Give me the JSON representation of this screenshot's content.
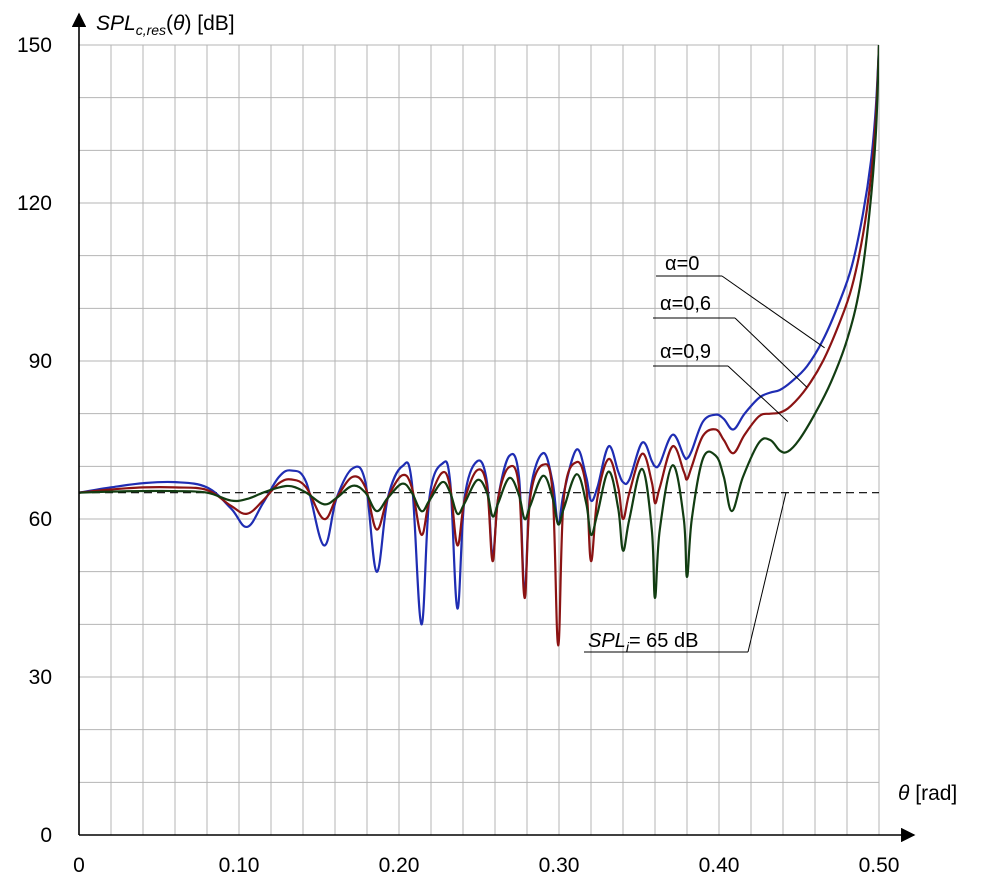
{
  "chart_data": {
    "type": "line",
    "ylabel": {
      "main": "SPL",
      "sub": "c,res",
      "arg_open": "(",
      "arg": "θ",
      "arg_close": ")",
      "unit": " [dB]"
    },
    "xlabel": {
      "symbol": "θ",
      "unit": " [rad]"
    },
    "xlim": [
      0,
      0.5
    ],
    "ylim": [
      0,
      150
    ],
    "x_ticks": [
      0,
      0.1,
      0.2,
      0.3,
      0.4,
      0.5
    ],
    "x_tick_labels": [
      "0",
      "0.10",
      "0.20",
      "0.30",
      "0.40",
      "0.50"
    ],
    "y_ticks": [
      0,
      30,
      60,
      90,
      120,
      150
    ],
    "y_tick_labels": [
      "0",
      "30",
      "60",
      "90",
      "120",
      "150"
    ],
    "x_grid_step": 0.02,
    "y_grid_step": 10,
    "grid": true,
    "reference_line": {
      "y": 65,
      "style": "dashed",
      "label_main": "SPL",
      "label_sub": "i",
      "label_rest": "= 65 dB"
    },
    "series": [
      {
        "name": "α=0",
        "color": "#1f2db3",
        "points": [
          [
            0,
            65
          ],
          [
            0.02,
            66
          ],
          [
            0.04,
            66.8
          ],
          [
            0.06,
            67
          ],
          [
            0.08,
            66
          ],
          [
            0.095,
            62
          ],
          [
            0.105,
            58.5
          ],
          [
            0.115,
            63
          ],
          [
            0.125,
            68
          ],
          [
            0.133,
            69.2
          ],
          [
            0.142,
            67
          ],
          [
            0.153,
            55
          ],
          [
            0.161,
            64
          ],
          [
            0.171,
            69.6
          ],
          [
            0.179,
            67
          ],
          [
            0.186,
            50
          ],
          [
            0.193,
            64
          ],
          [
            0.202,
            70
          ],
          [
            0.208,
            67
          ],
          [
            0.214,
            40
          ],
          [
            0.219,
            64
          ],
          [
            0.227,
            70.5
          ],
          [
            0.232,
            67
          ],
          [
            0.2365,
            43
          ],
          [
            0.241,
            64
          ],
          [
            0.249,
            71
          ],
          [
            0.255,
            67
          ],
          [
            0.2585,
            53
          ],
          [
            0.262,
            64
          ],
          [
            0.269,
            72
          ],
          [
            0.275,
            68
          ],
          [
            0.2785,
            46
          ],
          [
            0.282,
            65
          ],
          [
            0.29,
            72.5
          ],
          [
            0.296,
            67
          ],
          [
            0.2995,
            59
          ],
          [
            0.303,
            65
          ],
          [
            0.311,
            73.2
          ],
          [
            0.317,
            68
          ],
          [
            0.32,
            63.5
          ],
          [
            0.324,
            66
          ],
          [
            0.331,
            73.8
          ],
          [
            0.337,
            69
          ],
          [
            0.34,
            67
          ],
          [
            0.344,
            67.5
          ],
          [
            0.352,
            74.5
          ],
          [
            0.358,
            71
          ],
          [
            0.36,
            70
          ],
          [
            0.363,
            70.5
          ],
          [
            0.371,
            76
          ],
          [
            0.378,
            72
          ],
          [
            0.38,
            71.5
          ],
          [
            0.383,
            73
          ],
          [
            0.39,
            78.5
          ],
          [
            0.398,
            79.8
          ],
          [
            0.403,
            79
          ],
          [
            0.409,
            77
          ],
          [
            0.416,
            80
          ],
          [
            0.425,
            83
          ],
          [
            0.432,
            84
          ],
          [
            0.438,
            84.5
          ],
          [
            0.445,
            86
          ],
          [
            0.455,
            89
          ],
          [
            0.465,
            94
          ],
          [
            0.475,
            101
          ],
          [
            0.483,
            108
          ],
          [
            0.49,
            118
          ],
          [
            0.495,
            128
          ],
          [
            0.498,
            138
          ],
          [
            0.5,
            150
          ]
        ]
      },
      {
        "name": "α=0,6",
        "color": "#8b1313",
        "points": [
          [
            0,
            65
          ],
          [
            0.02,
            65.6
          ],
          [
            0.04,
            66
          ],
          [
            0.06,
            66
          ],
          [
            0.08,
            65.5
          ],
          [
            0.095,
            62.5
          ],
          [
            0.105,
            61
          ],
          [
            0.115,
            63.5
          ],
          [
            0.125,
            66.8
          ],
          [
            0.133,
            67.5
          ],
          [
            0.142,
            66
          ],
          [
            0.153,
            60
          ],
          [
            0.161,
            64
          ],
          [
            0.171,
            68
          ],
          [
            0.179,
            66
          ],
          [
            0.186,
            58
          ],
          [
            0.193,
            64
          ],
          [
            0.202,
            68.3
          ],
          [
            0.208,
            66
          ],
          [
            0.214,
            57
          ],
          [
            0.219,
            63.5
          ],
          [
            0.227,
            68.8
          ],
          [
            0.232,
            66
          ],
          [
            0.2365,
            55
          ],
          [
            0.241,
            63.5
          ],
          [
            0.249,
            69.3
          ],
          [
            0.255,
            66
          ],
          [
            0.2585,
            52
          ],
          [
            0.262,
            64
          ],
          [
            0.269,
            69.9
          ],
          [
            0.275,
            66
          ],
          [
            0.2785,
            45
          ],
          [
            0.282,
            64
          ],
          [
            0.29,
            70.3
          ],
          [
            0.296,
            65
          ],
          [
            0.2995,
            36
          ],
          [
            0.303,
            64
          ],
          [
            0.311,
            70.8
          ],
          [
            0.317,
            66
          ],
          [
            0.32,
            52
          ],
          [
            0.324,
            64
          ],
          [
            0.331,
            71.4
          ],
          [
            0.337,
            66
          ],
          [
            0.34,
            60
          ],
          [
            0.344,
            65
          ],
          [
            0.352,
            72.4
          ],
          [
            0.358,
            67
          ],
          [
            0.36,
            63
          ],
          [
            0.363,
            66
          ],
          [
            0.371,
            73.8
          ],
          [
            0.378,
            69
          ],
          [
            0.38,
            67.5
          ],
          [
            0.383,
            70
          ],
          [
            0.39,
            75.8
          ],
          [
            0.398,
            77
          ],
          [
            0.403,
            75
          ],
          [
            0.409,
            72.5
          ],
          [
            0.416,
            76
          ],
          [
            0.425,
            79.5
          ],
          [
            0.432,
            80
          ],
          [
            0.438,
            80.2
          ],
          [
            0.445,
            81.5
          ],
          [
            0.455,
            85
          ],
          [
            0.465,
            90
          ],
          [
            0.475,
            97
          ],
          [
            0.483,
            104
          ],
          [
            0.49,
            114
          ],
          [
            0.495,
            125
          ],
          [
            0.498,
            136
          ],
          [
            0.5,
            150
          ]
        ]
      },
      {
        "name": "α=0,9",
        "color": "#123d12",
        "points": [
          [
            0,
            65
          ],
          [
            0.02,
            65.2
          ],
          [
            0.04,
            65.3
          ],
          [
            0.06,
            65.3
          ],
          [
            0.08,
            65
          ],
          [
            0.095,
            63.5
          ],
          [
            0.105,
            63.8
          ],
          [
            0.115,
            65
          ],
          [
            0.125,
            66
          ],
          [
            0.133,
            66.2
          ],
          [
            0.142,
            65
          ],
          [
            0.153,
            62.8
          ],
          [
            0.161,
            64
          ],
          [
            0.171,
            66.3
          ],
          [
            0.179,
            65
          ],
          [
            0.186,
            61.5
          ],
          [
            0.193,
            64
          ],
          [
            0.202,
            66.7
          ],
          [
            0.208,
            65
          ],
          [
            0.214,
            61.5
          ],
          [
            0.219,
            63.5
          ],
          [
            0.227,
            67
          ],
          [
            0.232,
            65
          ],
          [
            0.2365,
            61
          ],
          [
            0.241,
            63
          ],
          [
            0.249,
            67.4
          ],
          [
            0.255,
            65
          ],
          [
            0.2585,
            60.5
          ],
          [
            0.262,
            63
          ],
          [
            0.269,
            67.8
          ],
          [
            0.275,
            64.5
          ],
          [
            0.2785,
            60
          ],
          [
            0.282,
            62.5
          ],
          [
            0.29,
            68.2
          ],
          [
            0.296,
            64
          ],
          [
            0.2995,
            59
          ],
          [
            0.303,
            62
          ],
          [
            0.311,
            68.5
          ],
          [
            0.317,
            63
          ],
          [
            0.32,
            57
          ],
          [
            0.324,
            61
          ],
          [
            0.331,
            69
          ],
          [
            0.337,
            62
          ],
          [
            0.34,
            54
          ],
          [
            0.344,
            60
          ],
          [
            0.352,
            69.5
          ],
          [
            0.358,
            58
          ],
          [
            0.36,
            45
          ],
          [
            0.363,
            58
          ],
          [
            0.371,
            70.2
          ],
          [
            0.378,
            60
          ],
          [
            0.38,
            49
          ],
          [
            0.383,
            60
          ],
          [
            0.39,
            71.5
          ],
          [
            0.398,
            72
          ],
          [
            0.403,
            68
          ],
          [
            0.408,
            61.5
          ],
          [
            0.415,
            68
          ],
          [
            0.425,
            74.5
          ],
          [
            0.432,
            75
          ],
          [
            0.438,
            73
          ],
          [
            0.443,
            72.8
          ],
          [
            0.45,
            75
          ],
          [
            0.46,
            80
          ],
          [
            0.47,
            86
          ],
          [
            0.48,
            94
          ],
          [
            0.488,
            104
          ],
          [
            0.494,
            118
          ],
          [
            0.498,
            133
          ],
          [
            0.5,
            150
          ]
        ]
      }
    ],
    "annotations": [
      {
        "text": "α=0",
        "series_index": 0,
        "anchor": [
          0.466,
          92.5
        ]
      },
      {
        "text": "α=0,6",
        "series_index": 1,
        "anchor": [
          0.455,
          85
        ]
      },
      {
        "text": "α=0,9",
        "series_index": 2,
        "anchor": [
          0.443,
          78.5
        ]
      }
    ]
  }
}
